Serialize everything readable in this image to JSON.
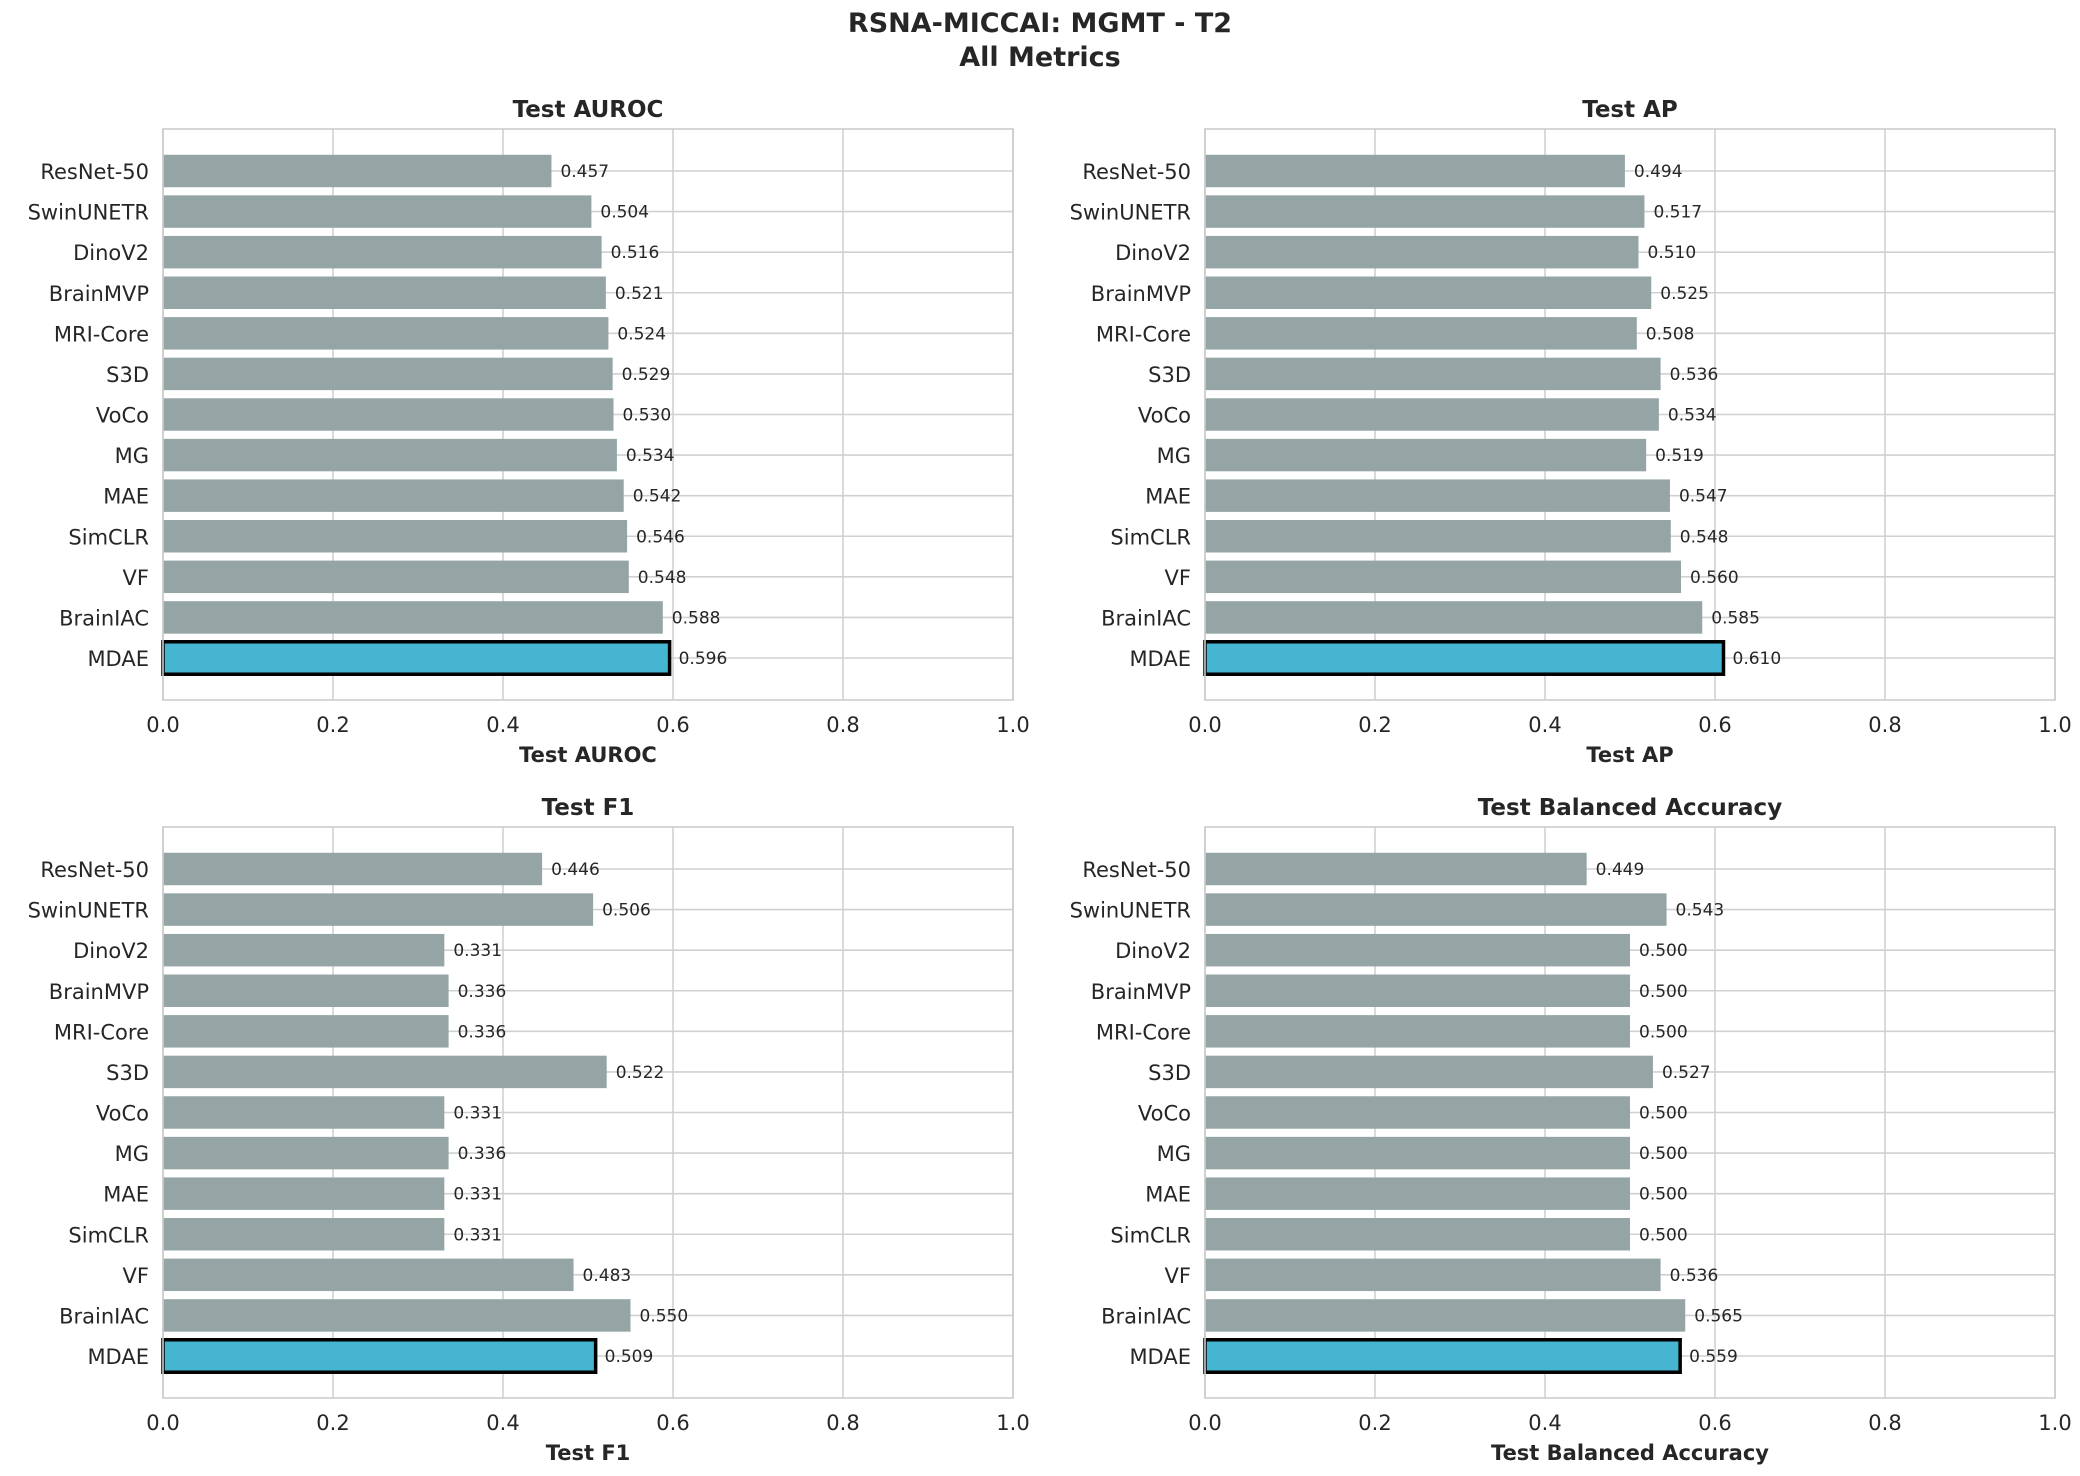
{
  "figure": {
    "title_line1": "RSNA-MICCAI: MGMT - T2",
    "title_line2": "All Metrics"
  },
  "colors": {
    "default_bar": "#95a5a6",
    "highlight_bar": "#45b5d1",
    "highlight_edge": "#000000",
    "grid": "#d0d0d0",
    "axes_edge": "#cccccc",
    "text": "#262626"
  },
  "chart_data": [
    {
      "type": "bar",
      "orientation": "horizontal",
      "title": "Test AUROC",
      "xlabel": "Test AUROC",
      "xlim": [
        0,
        1
      ],
      "xticks": [
        "0.0",
        "0.2",
        "0.4",
        "0.6",
        "0.8",
        "1.0"
      ],
      "grid": true,
      "highlight": "MDAE",
      "categories": [
        "ResNet-50",
        "SwinUNETR",
        "DinoV2",
        "BrainMVP",
        "MRI-Core",
        "S3D",
        "VoCo",
        "MG",
        "MAE",
        "SimCLR",
        "VF",
        "BrainIAC",
        "MDAE"
      ],
      "values": [
        0.457,
        0.504,
        0.516,
        0.521,
        0.524,
        0.529,
        0.53,
        0.534,
        0.542,
        0.546,
        0.548,
        0.588,
        0.596
      ],
      "labels": [
        "0.457",
        "0.504",
        "0.516",
        "0.521",
        "0.524",
        "0.529",
        "0.530",
        "0.534",
        "0.542",
        "0.546",
        "0.548",
        "0.588",
        "0.596"
      ]
    },
    {
      "type": "bar",
      "orientation": "horizontal",
      "title": "Test AP",
      "xlabel": "Test AP",
      "xlim": [
        0,
        1
      ],
      "xticks": [
        "0.0",
        "0.2",
        "0.4",
        "0.6",
        "0.8",
        "1.0"
      ],
      "grid": true,
      "highlight": "MDAE",
      "categories": [
        "ResNet-50",
        "SwinUNETR",
        "DinoV2",
        "BrainMVP",
        "MRI-Core",
        "S3D",
        "VoCo",
        "MG",
        "MAE",
        "SimCLR",
        "VF",
        "BrainIAC",
        "MDAE"
      ],
      "values": [
        0.494,
        0.517,
        0.51,
        0.525,
        0.508,
        0.536,
        0.534,
        0.519,
        0.547,
        0.548,
        0.56,
        0.585,
        0.61
      ],
      "labels": [
        "0.494",
        "0.517",
        "0.510",
        "0.525",
        "0.508",
        "0.536",
        "0.534",
        "0.519",
        "0.547",
        "0.548",
        "0.560",
        "0.585",
        "0.610"
      ]
    },
    {
      "type": "bar",
      "orientation": "horizontal",
      "title": "Test F1",
      "xlabel": "Test F1",
      "xlim": [
        0,
        1
      ],
      "xticks": [
        "0.0",
        "0.2",
        "0.4",
        "0.6",
        "0.8",
        "1.0"
      ],
      "grid": true,
      "highlight": "MDAE",
      "categories": [
        "ResNet-50",
        "SwinUNETR",
        "DinoV2",
        "BrainMVP",
        "MRI-Core",
        "S3D",
        "VoCo",
        "MG",
        "MAE",
        "SimCLR",
        "VF",
        "BrainIAC",
        "MDAE"
      ],
      "values": [
        0.446,
        0.506,
        0.331,
        0.336,
        0.336,
        0.522,
        0.331,
        0.336,
        0.331,
        0.331,
        0.483,
        0.55,
        0.509
      ],
      "labels": [
        "0.446",
        "0.506",
        "0.331",
        "0.336",
        "0.336",
        "0.522",
        "0.331",
        "0.336",
        "0.331",
        "0.331",
        "0.483",
        "0.550",
        "0.509"
      ]
    },
    {
      "type": "bar",
      "orientation": "horizontal",
      "title": "Test Balanced Accuracy",
      "xlabel": "Test Balanced Accuracy",
      "xlim": [
        0,
        1
      ],
      "xticks": [
        "0.0",
        "0.2",
        "0.4",
        "0.6",
        "0.8",
        "1.0"
      ],
      "grid": true,
      "highlight": "MDAE",
      "categories": [
        "ResNet-50",
        "SwinUNETR",
        "DinoV2",
        "BrainMVP",
        "MRI-Core",
        "S3D",
        "VoCo",
        "MG",
        "MAE",
        "SimCLR",
        "VF",
        "BrainIAC",
        "MDAE"
      ],
      "values": [
        0.449,
        0.543,
        0.5,
        0.5,
        0.5,
        0.527,
        0.5,
        0.5,
        0.5,
        0.5,
        0.536,
        0.565,
        0.559
      ],
      "labels": [
        "0.449",
        "0.543",
        "0.500",
        "0.500",
        "0.500",
        "0.527",
        "0.500",
        "0.500",
        "0.500",
        "0.500",
        "0.536",
        "0.565",
        "0.559"
      ]
    }
  ]
}
